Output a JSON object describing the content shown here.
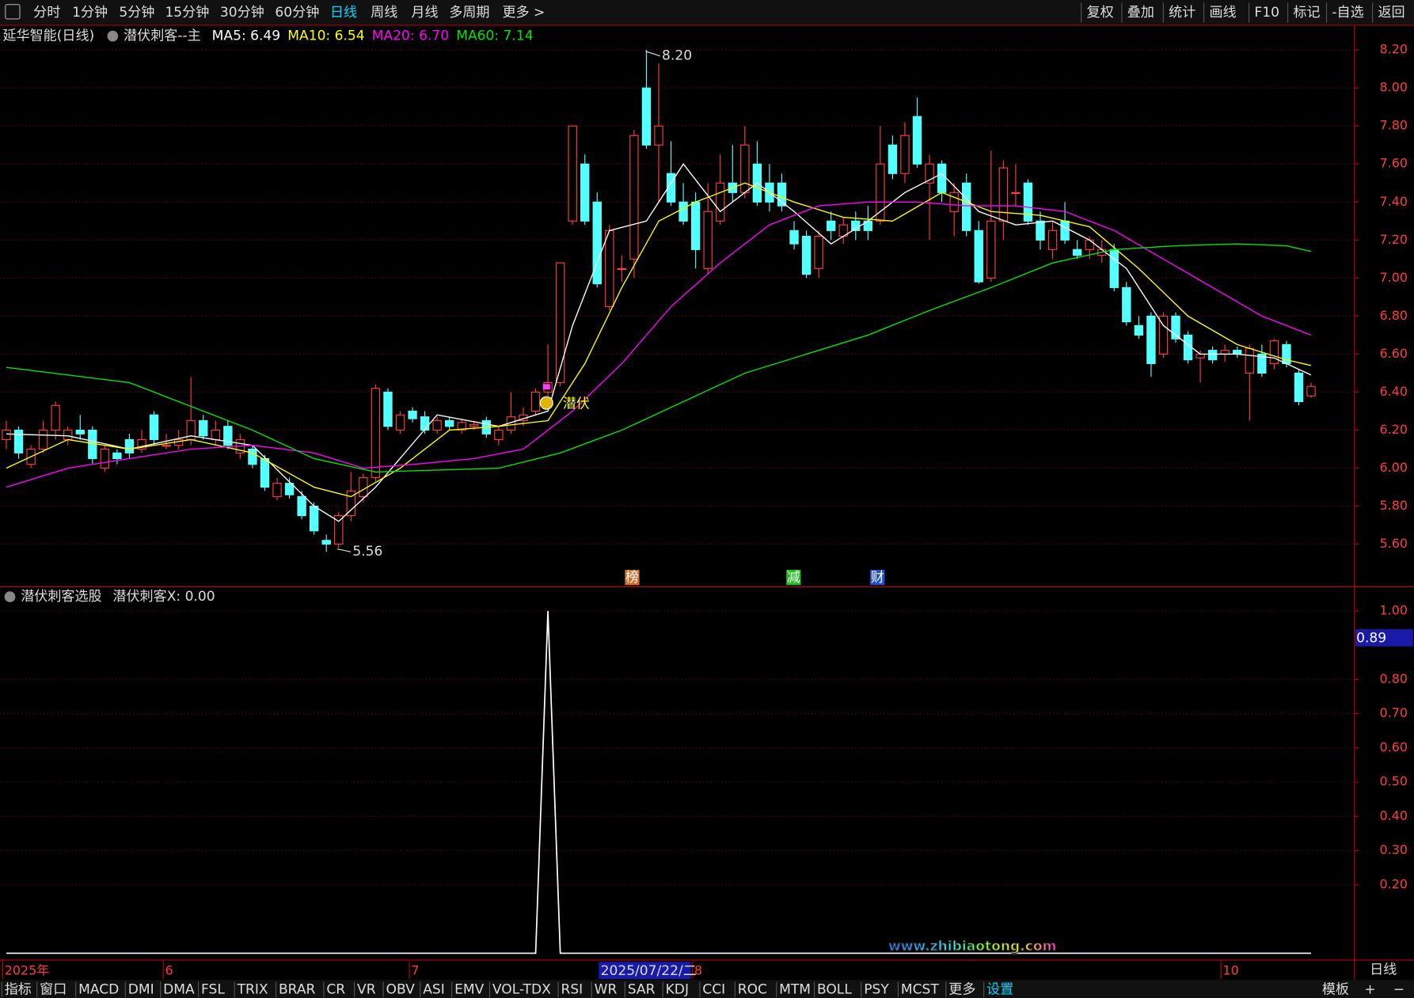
{
  "toolbar": {
    "left": [
      "分时",
      "1分钟",
      "5分钟",
      "15分钟",
      "30分钟",
      "60分钟",
      "日线",
      "周线",
      "月线",
      "多周期",
      "更多 >"
    ],
    "active": "日线",
    "right": [
      "复权",
      "叠加",
      "统计",
      "画线",
      "F10",
      "标记",
      "-自选",
      "返回"
    ]
  },
  "chart_data": [
    {
      "type": "candlestick",
      "title": "延华智能(日线)",
      "formula": "潜伏刺客--主",
      "candles": [
        [
          6.15,
          6.25,
          6.1,
          6.2
        ],
        [
          6.2,
          6.22,
          6.05,
          6.08
        ],
        [
          6.02,
          6.12,
          6.0,
          6.1
        ],
        [
          6.1,
          6.25,
          6.08,
          6.2
        ],
        [
          6.2,
          6.35,
          6.15,
          6.33
        ],
        [
          6.15,
          6.22,
          6.12,
          6.2
        ],
        [
          6.2,
          6.28,
          6.15,
          6.18
        ],
        [
          6.2,
          6.22,
          6.02,
          6.05
        ],
        [
          6.0,
          6.12,
          5.98,
          6.1
        ],
        [
          6.08,
          6.1,
          6.02,
          6.05
        ],
        [
          6.15,
          6.18,
          6.05,
          6.08
        ],
        [
          6.1,
          6.2,
          6.08,
          6.15
        ],
        [
          6.28,
          6.3,
          6.12,
          6.15
        ],
        [
          6.12,
          6.18,
          6.1,
          6.12
        ],
        [
          6.12,
          6.2,
          6.1,
          6.15
        ],
        [
          6.15,
          6.48,
          6.12,
          6.25
        ],
        [
          6.25,
          6.28,
          6.15,
          6.17
        ],
        [
          6.15,
          6.25,
          6.12,
          6.2
        ],
        [
          6.22,
          6.25,
          6.1,
          6.12
        ],
        [
          6.08,
          6.18,
          6.05,
          6.15
        ],
        [
          6.1,
          6.12,
          6.0,
          6.02
        ],
        [
          6.05,
          6.07,
          5.88,
          5.9
        ],
        [
          5.85,
          5.95,
          5.83,
          5.92
        ],
        [
          5.92,
          5.95,
          5.84,
          5.86
        ],
        [
          5.85,
          5.88,
          5.73,
          5.75
        ],
        [
          5.8,
          5.82,
          5.65,
          5.67
        ],
        [
          5.62,
          5.65,
          5.56,
          5.6
        ],
        [
          5.6,
          5.77,
          5.58,
          5.75
        ],
        [
          5.75,
          5.98,
          5.72,
          5.88
        ],
        [
          5.85,
          5.97,
          5.82,
          5.95
        ],
        [
          5.95,
          6.44,
          5.93,
          6.42
        ],
        [
          6.4,
          6.42,
          6.2,
          6.22
        ],
        [
          6.2,
          6.3,
          6.18,
          6.28
        ],
        [
          6.3,
          6.32,
          6.24,
          6.26
        ],
        [
          6.27,
          6.3,
          6.18,
          6.2
        ],
        [
          6.2,
          6.27,
          6.18,
          6.25
        ],
        [
          6.25,
          6.27,
          6.2,
          6.22
        ],
        [
          6.2,
          6.26,
          6.18,
          6.24
        ],
        [
          6.22,
          6.25,
          6.2,
          6.23
        ],
        [
          6.25,
          6.27,
          6.16,
          6.18
        ],
        [
          6.15,
          6.22,
          6.12,
          6.2
        ],
        [
          6.2,
          6.4,
          6.18,
          6.27
        ],
        [
          6.25,
          6.32,
          6.22,
          6.28
        ],
        [
          6.3,
          6.42,
          6.28,
          6.4
        ],
        [
          6.4,
          6.65,
          6.38,
          6.45
        ],
        [
          6.45,
          7.08,
          6.43,
          7.08
        ],
        [
          7.3,
          7.8,
          7.28,
          7.8
        ],
        [
          7.6,
          7.65,
          7.28,
          7.3
        ],
        [
          7.4,
          7.45,
          6.95,
          6.97
        ],
        [
          6.85,
          7.28,
          6.83,
          7.25
        ],
        [
          7.05,
          7.12,
          6.98,
          7.05
        ],
        [
          7.1,
          7.78,
          7.0,
          7.75
        ],
        [
          8.0,
          8.2,
          7.68,
          7.7
        ],
        [
          7.7,
          8.13,
          7.4,
          7.8
        ],
        [
          7.55,
          7.72,
          7.38,
          7.4
        ],
        [
          7.4,
          7.5,
          7.28,
          7.3
        ],
        [
          7.4,
          7.45,
          7.05,
          7.15
        ],
        [
          7.05,
          7.5,
          7.02,
          7.35
        ],
        [
          7.3,
          7.65,
          7.28,
          7.5
        ],
        [
          7.5,
          7.7,
          7.4,
          7.45
        ],
        [
          7.45,
          7.8,
          7.42,
          7.7
        ],
        [
          7.6,
          7.72,
          7.38,
          7.4
        ],
        [
          7.5,
          7.6,
          7.35,
          7.4
        ],
        [
          7.5,
          7.55,
          7.35,
          7.38
        ],
        [
          7.25,
          7.3,
          7.15,
          7.18
        ],
        [
          7.22,
          7.25,
          7.0,
          7.02
        ],
        [
          7.05,
          7.25,
          7.0,
          7.22
        ],
        [
          7.3,
          7.35,
          7.2,
          7.25
        ],
        [
          7.22,
          7.32,
          7.18,
          7.28
        ],
        [
          7.3,
          7.35,
          7.2,
          7.25
        ],
        [
          7.3,
          7.38,
          7.2,
          7.25
        ],
        [
          7.3,
          7.8,
          7.28,
          7.6
        ],
        [
          7.7,
          7.75,
          7.52,
          7.55
        ],
        [
          7.55,
          7.82,
          7.5,
          7.75
        ],
        [
          7.85,
          7.95,
          7.58,
          7.6
        ],
        [
          7.5,
          7.65,
          7.2,
          7.6
        ],
        [
          7.6,
          7.62,
          7.4,
          7.45
        ],
        [
          7.35,
          7.5,
          7.22,
          7.45
        ],
        [
          7.5,
          7.55,
          7.22,
          7.25
        ],
        [
          7.25,
          7.3,
          6.97,
          6.98
        ],
        [
          7.0,
          7.67,
          6.98,
          7.3
        ],
        [
          7.3,
          7.62,
          7.2,
          7.58
        ],
        [
          7.45,
          7.6,
          7.38,
          7.45
        ],
        [
          7.5,
          7.52,
          7.28,
          7.3
        ],
        [
          7.3,
          7.35,
          7.15,
          7.2
        ],
        [
          7.15,
          7.3,
          7.1,
          7.25
        ],
        [
          7.3,
          7.4,
          7.18,
          7.2
        ],
        [
          7.15,
          7.2,
          7.1,
          7.12
        ],
        [
          7.15,
          7.22,
          7.1,
          7.2
        ],
        [
          7.12,
          7.2,
          7.08,
          7.15
        ],
        [
          7.15,
          7.18,
          6.93,
          6.95
        ],
        [
          6.95,
          6.98,
          6.75,
          6.77
        ],
        [
          6.75,
          6.8,
          6.68,
          6.7
        ],
        [
          6.8,
          6.82,
          6.48,
          6.55
        ],
        [
          6.6,
          6.82,
          6.58,
          6.8
        ],
        [
          6.8,
          6.82,
          6.66,
          6.68
        ],
        [
          6.7,
          6.72,
          6.55,
          6.57
        ],
        [
          6.58,
          6.62,
          6.45,
          6.6
        ],
        [
          6.62,
          6.64,
          6.55,
          6.57
        ],
        [
          6.6,
          6.65,
          6.56,
          6.62
        ],
        [
          6.62,
          6.64,
          6.58,
          6.6
        ],
        [
          6.5,
          6.65,
          6.25,
          6.63
        ],
        [
          6.6,
          6.65,
          6.48,
          6.5
        ],
        [
          6.55,
          6.68,
          6.52,
          6.67
        ],
        [
          6.65,
          6.67,
          6.53,
          6.55
        ],
        [
          6.5,
          6.52,
          6.33,
          6.35
        ],
        [
          6.38,
          6.45,
          6.37,
          6.43
        ]
      ],
      "up_color": "#ff3c3c",
      "down_color": "#54ffff",
      "series": [
        {
          "legend": "MA5: 6.49",
          "color": "#ffffff",
          "x": [
            0,
            5,
            10,
            15,
            20,
            25,
            27,
            30,
            35,
            40,
            44,
            46,
            49,
            52,
            55,
            58,
            61,
            64,
            67,
            70,
            73,
            76,
            79,
            82,
            85,
            88,
            91,
            94,
            97,
            100,
            103,
            106
          ],
          "values": [
            6.18,
            6.17,
            6.1,
            6.17,
            6.12,
            5.8,
            5.72,
            5.9,
            6.28,
            6.22,
            6.3,
            6.75,
            7.25,
            7.3,
            7.6,
            7.35,
            7.5,
            7.35,
            7.18,
            7.3,
            7.45,
            7.55,
            7.35,
            7.28,
            7.3,
            7.2,
            7.05,
            6.75,
            6.6,
            6.6,
            6.58,
            6.49
          ]
        },
        {
          "legend": "MA10: 6.54",
          "color": "#ffff00",
          "x": [
            0,
            5,
            10,
            15,
            20,
            25,
            28,
            32,
            36,
            40,
            44,
            47,
            50,
            53,
            56,
            60,
            64,
            68,
            72,
            76,
            80,
            84,
            88,
            92,
            96,
            100,
            104,
            106
          ],
          "values": [
            6.0,
            6.15,
            6.1,
            6.15,
            6.08,
            5.9,
            5.85,
            6.0,
            6.2,
            6.22,
            6.25,
            6.55,
            6.95,
            7.3,
            7.4,
            7.5,
            7.4,
            7.32,
            7.3,
            7.45,
            7.35,
            7.33,
            7.27,
            7.05,
            6.8,
            6.65,
            6.57,
            6.54
          ]
        },
        {
          "legend": "MA20: 6.70",
          "color": "#ff00ff",
          "x": [
            0,
            5,
            10,
            15,
            20,
            25,
            29,
            33,
            38,
            42,
            46,
            50,
            54,
            58,
            62,
            66,
            70,
            74,
            78,
            82,
            86,
            90,
            94,
            98,
            102,
            106
          ],
          "values": [
            5.9,
            6.0,
            6.05,
            6.1,
            6.12,
            6.08,
            6.0,
            6.02,
            6.05,
            6.1,
            6.3,
            6.55,
            6.85,
            7.08,
            7.28,
            7.38,
            7.4,
            7.4,
            7.38,
            7.38,
            7.35,
            7.25,
            7.1,
            6.95,
            6.8,
            6.7
          ]
        },
        {
          "legend": "MA60: 7.14",
          "color": "#00e600",
          "x": [
            0,
            10,
            20,
            25,
            30,
            40,
            45,
            50,
            55,
            60,
            65,
            70,
            75,
            80,
            85,
            90,
            95,
            100,
            104,
            106
          ],
          "values": [
            6.53,
            6.45,
            6.2,
            6.05,
            5.98,
            6.0,
            6.08,
            6.2,
            6.35,
            6.5,
            6.6,
            6.7,
            6.83,
            6.95,
            7.08,
            7.15,
            7.17,
            7.18,
            7.17,
            7.14
          ]
        }
      ],
      "ylim": [
        5.38,
        8.33
      ],
      "yticks": [
        {
          "value": 8.2,
          "label": "8.20"
        },
        {
          "value": 8.0,
          "label": "8.00"
        },
        {
          "value": 7.8,
          "label": "7.80"
        },
        {
          "value": 7.6,
          "label": "7.60"
        },
        {
          "value": 7.4,
          "label": "7.40"
        },
        {
          "value": 7.2,
          "label": "7.20"
        },
        {
          "value": 7.0,
          "label": "7.00"
        },
        {
          "value": 6.8,
          "label": "6.80"
        },
        {
          "value": 6.6,
          "label": "6.60"
        },
        {
          "value": 6.4,
          "label": "6.40"
        },
        {
          "value": 6.2,
          "label": "6.20"
        },
        {
          "value": 6.0,
          "label": "6.00"
        },
        {
          "value": 5.8,
          "label": "5.80"
        },
        {
          "value": 5.6,
          "label": "5.60"
        }
      ],
      "grid": true,
      "high_label": "8.20",
      "low_label": "5.56",
      "signal_label": "潜伏",
      "events": [
        "榜",
        "减",
        "财"
      ]
    },
    {
      "type": "line",
      "title": "潜伏刺客选股",
      "legend": "潜伏刺客X: 0.00",
      "color": "#ffffff",
      "cursor_label": "0.89",
      "values": [
        0,
        0,
        0,
        0,
        0,
        0,
        0,
        0,
        0,
        0,
        0,
        0,
        0,
        0,
        0,
        0,
        0,
        0,
        0,
        0,
        0,
        0,
        0,
        0,
        0,
        0,
        0,
        0,
        0,
        0,
        0,
        0,
        0,
        0,
        0,
        0,
        0,
        0,
        0,
        0,
        0,
        0,
        0,
        0,
        1,
        0,
        0,
        0,
        0,
        0,
        0,
        0,
        0,
        0,
        0,
        0,
        0,
        0,
        0,
        0,
        0,
        0,
        0,
        0,
        0,
        0,
        0,
        0,
        0,
        0,
        0,
        0,
        0,
        0,
        0,
        0,
        0,
        0,
        0,
        0,
        0,
        0,
        0,
        0,
        0,
        0,
        0,
        0,
        0,
        0,
        0,
        0,
        0,
        0,
        0,
        0,
        0,
        0,
        0,
        0,
        0,
        0,
        0,
        0,
        0,
        0,
        0
      ],
      "ylim": [
        -0.02,
        1.07
      ],
      "yticks": [
        {
          "value": 1.0,
          "label": "1.00"
        },
        {
          "value": 0.8,
          "label": "0.80"
        },
        {
          "value": 0.7,
          "label": "0.70"
        },
        {
          "value": 0.6,
          "label": "0.60"
        },
        {
          "value": 0.5,
          "label": "0.50"
        },
        {
          "value": 0.4,
          "label": "0.40"
        },
        {
          "value": 0.3,
          "label": "0.30"
        },
        {
          "value": 0.2,
          "label": "0.20"
        }
      ],
      "grid": true
    }
  ],
  "date_axis": {
    "labels": [
      "2025年",
      "6",
      "7",
      "8",
      "10"
    ],
    "cursor_date": "2025/07/22/二",
    "period": "日线"
  },
  "tabs": {
    "left": [
      "指标",
      "窗口",
      "MACD",
      "DMI",
      "DMA",
      "FSL",
      "TRIX",
      "BRAR",
      "CR",
      "VR",
      "OBV",
      "ASI",
      "EMV",
      "VOL-TDX",
      "RSI",
      "WR",
      "SAR",
      "KDJ",
      "CCI",
      "ROC",
      "MTM",
      "BOLL",
      "PSY",
      "MCST",
      "更多",
      "设置"
    ],
    "right": [
      "模板",
      "+",
      "−"
    ]
  },
  "watermark": "www.zhibiaotong.com"
}
